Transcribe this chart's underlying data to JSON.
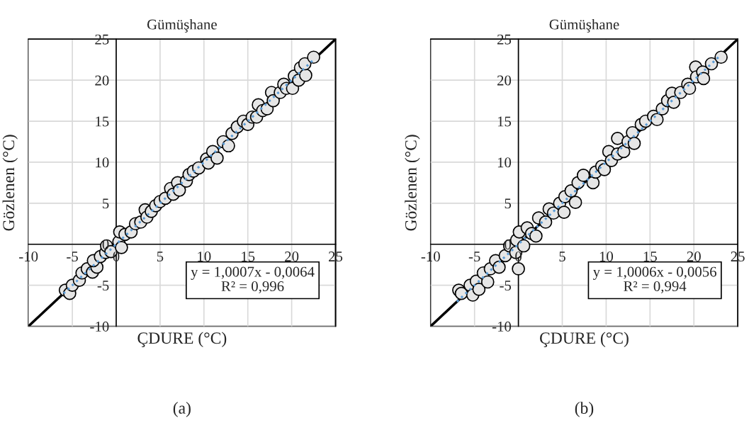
{
  "chart_data": [
    {
      "type": "scatter",
      "title": "Gümüşhane",
      "xlabel": "ÇDURE (°C)",
      "ylabel": "Gözlenen (°C)",
      "xlim": [
        -10,
        25
      ],
      "ylim": [
        -10,
        25
      ],
      "xticks": [
        -10,
        -5,
        0,
        5,
        10,
        15,
        20,
        25
      ],
      "yticks": [
        -10,
        -5,
        0,
        5,
        10,
        15,
        20,
        25
      ],
      "grid": true,
      "annotations": [
        "y = 1,0007x - 0,0064\nR² = 0,996",
        "(a)"
      ],
      "series": [
        {
          "type": "scatter",
          "marker": "circle",
          "color": "#e6e6e6",
          "x": [
            -5.8,
            -5.3,
            -5.0,
            -4.2,
            -3.9,
            -3.3,
            -2.7,
            -2.2,
            -2.6,
            -1.8,
            -1.2,
            -1.1,
            -0.6,
            0.3,
            0.6,
            0.4,
            1.0,
            1.7,
            2.2,
            2.8,
            3.3,
            3.5,
            4.0,
            4.5,
            5.0,
            5.6,
            6.2,
            6.5,
            7.0,
            7.2,
            8.0,
            8.3,
            8.8,
            9.4,
            10.3,
            10.5,
            11.0,
            11.5,
            12.2,
            12.8,
            13.2,
            13.8,
            14.5,
            15.0,
            15.5,
            16.0,
            16.2,
            16.7,
            17.2,
            17.7,
            17.9,
            18.7,
            19.1,
            19.4,
            20.1,
            20.3,
            20.8,
            21.0,
            21.6,
            21.5,
            22.5
          ],
          "values": [
            -5.6,
            -6.0,
            -5.0,
            -4.4,
            -3.5,
            -3.0,
            -3.4,
            -2.8,
            -2.0,
            -1.5,
            -1.0,
            -0.2,
            -0.9,
            0.3,
            -0.4,
            1.5,
            1.2,
            1.5,
            2.5,
            2.7,
            4.2,
            3.3,
            4.0,
            4.7,
            5.2,
            5.6,
            6.8,
            6.1,
            7.5,
            6.6,
            7.7,
            8.5,
            8.9,
            9.3,
            10.4,
            9.9,
            11.3,
            10.5,
            12.5,
            12.0,
            13.5,
            14.3,
            15.0,
            14.6,
            15.5,
            15.5,
            17.0,
            16.3,
            16.5,
            18.5,
            17.5,
            18.5,
            19.5,
            19.0,
            19.0,
            20.5,
            20.0,
            21.5,
            20.6,
            22.0,
            22.8
          ]
        },
        {
          "type": "line",
          "color": "#000000",
          "line_style": "solid",
          "x": [
            -10,
            25
          ],
          "values": [
            -10,
            25
          ]
        },
        {
          "type": "line",
          "color": "#5b9bd5",
          "line_style": "dotted",
          "x": [
            -6,
            22.5
          ],
          "values": [
            -6.0,
            22.5
          ]
        }
      ]
    },
    {
      "type": "scatter",
      "title": "Gümüşhane",
      "xlabel": "ÇDURE (°C)",
      "ylabel": "Gözlenen (°C)",
      "xlim": [
        -10,
        25
      ],
      "ylim": [
        -10,
        25
      ],
      "xticks": [
        -10,
        -5,
        0,
        5,
        10,
        15,
        20,
        25
      ],
      "yticks": [
        -10,
        -5,
        0,
        5,
        10,
        15,
        20,
        25
      ],
      "grid": true,
      "annotations": [
        "y = 1,0006x - 0,0056\nR² = 0,994",
        "(b)"
      ],
      "series": [
        {
          "type": "scatter",
          "marker": "circle",
          "color": "#e6e6e6",
          "x": [
            -6.8,
            -6.5,
            -5.5,
            -5.2,
            -4.8,
            -4.5,
            -4.0,
            -3.5,
            -3.2,
            -2.6,
            -2.2,
            -1.5,
            -1.0,
            -0.3,
            0,
            -0.2,
            0.1,
            0.6,
            1.0,
            1.5,
            2.0,
            2.3,
            3.1,
            3.5,
            4.0,
            4.7,
            5.2,
            5.3,
            6.0,
            6.5,
            6.8,
            7.4,
            8.5,
            8.8,
            9.5,
            9.8,
            10.3,
            10.6,
            11.3,
            11.3,
            12.0,
            12.5,
            13.0,
            13.2,
            14.0,
            14.5,
            15.4,
            15.8,
            16.4,
            17.0,
            17.5,
            17.7,
            18.5,
            19.3,
            19.5,
            20.2,
            20.3,
            21.0,
            21.1,
            22.0,
            23.1
          ],
          "values": [
            -5.6,
            -6.0,
            -5.0,
            -6.2,
            -4.5,
            -5.5,
            -3.5,
            -4.6,
            -3.0,
            -2.0,
            -2.8,
            -1.4,
            -0.2,
            -1.0,
            -3.0,
            0.5,
            1.5,
            -0.2,
            2.0,
            1.3,
            1.0,
            3.2,
            2.7,
            4.3,
            3.8,
            5.0,
            3.9,
            5.8,
            6.5,
            5.1,
            7.5,
            8.4,
            7.5,
            8.8,
            9.5,
            9.1,
            11.3,
            10.2,
            11.0,
            12.9,
            11.3,
            12.5,
            13.6,
            12.3,
            14.6,
            15.0,
            15.6,
            15.2,
            16.5,
            17.5,
            18.4,
            17.3,
            18.5,
            19.5,
            19.0,
            21.6,
            20.4,
            21.0,
            20.2,
            22.0,
            22.8
          ]
        },
        {
          "type": "line",
          "color": "#000000",
          "line_style": "solid",
          "x": [
            -10,
            25
          ],
          "values": [
            -10,
            25
          ]
        },
        {
          "type": "line",
          "color": "#5b9bd5",
          "line_style": "dotted",
          "x": [
            -7,
            23
          ],
          "values": [
            -7.0,
            23.0
          ]
        }
      ]
    }
  ]
}
